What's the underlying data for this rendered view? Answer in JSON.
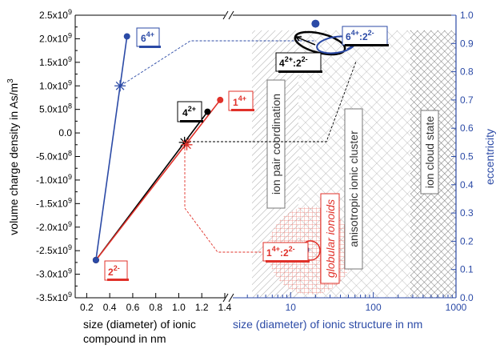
{
  "chart_data": {
    "type": "scatter",
    "left_axis": {
      "label": "volume charge density in As/m",
      "label_sup": "3",
      "ylim": [
        -3500000000.0,
        2500000000.0
      ],
      "ticks": [
        {
          "value": 2500000000.0,
          "mant": "2.5x10",
          "exp": "9"
        },
        {
          "value": 2000000000.0,
          "mant": "2.0x10",
          "exp": "9"
        },
        {
          "value": 1500000000.0,
          "mant": "1.5x10",
          "exp": "9"
        },
        {
          "value": 1000000000.0,
          "mant": "1.0x10",
          "exp": "9"
        },
        {
          "value": 500000000.0,
          "mant": "5.0x10",
          "exp": "8"
        },
        {
          "value": 0,
          "mant": "0.0",
          "exp": ""
        },
        {
          "value": -500000000.0,
          "mant": "-5.0x10",
          "exp": "8"
        },
        {
          "value": -1000000000.0,
          "mant": "-1.0x10",
          "exp": "9"
        },
        {
          "value": -1500000000.0,
          "mant": "-1.5x10",
          "exp": "9"
        },
        {
          "value": -2000000000.0,
          "mant": "-2.0x10",
          "exp": "9"
        },
        {
          "value": -2500000000.0,
          "mant": "-2.5x10",
          "exp": "9"
        },
        {
          "value": -3000000000.0,
          "mant": "-3.0x10",
          "exp": "9"
        },
        {
          "value": -3500000000.0,
          "mant": "-3.5x10",
          "exp": "9"
        }
      ]
    },
    "right_axis": {
      "label": "eccentricity",
      "ylim": [
        0,
        1.0
      ],
      "ticks": [
        "0.0",
        "0.1",
        "0.2",
        "0.3",
        "0.4",
        "0.5",
        "0.6",
        "0.7",
        "0.8",
        "0.9",
        "1.0"
      ]
    },
    "x_axis_left": {
      "label_line1": "size (diameter) of ionic",
      "label_line2": "compound in nm",
      "xlim": [
        0.1,
        1.4
      ],
      "ticks": [
        "0.2",
        "0.4",
        "0.6",
        "0.8",
        "1.0",
        "1.2",
        "1.4"
      ]
    },
    "x_axis_right": {
      "label": "size (diameter) of ionic structure in nm",
      "scale": "log",
      "xlim": [
        2,
        1000
      ],
      "ticks": [
        {
          "value": 10,
          "label": "10"
        },
        {
          "value": 100,
          "label": "100"
        },
        {
          "value": 1000,
          "label": "1000"
        }
      ]
    },
    "series": [
      {
        "color": "#2b4aa6",
        "points": [
          {
            "x": 0.28,
            "y": -2700000000.0
          },
          {
            "x": 0.55,
            "y": 2050000000.0
          }
        ]
      },
      {
        "color": "#000000",
        "points": [
          {
            "x": 0.28,
            "y": -2700000000.0
          },
          {
            "x": 1.25,
            "y": 450000000.0
          }
        ]
      },
      {
        "color": "#e0312a",
        "points": [
          {
            "x": 0.28,
            "y": -2700000000.0
          },
          {
            "x": 1.36,
            "y": 700000000.0
          }
        ]
      }
    ],
    "mean_markers": [
      {
        "color": "#2b4aa6",
        "x": 0.49,
        "y": 1000000000.0
      },
      {
        "color": "#000000",
        "x": 1.05,
        "y": -200000000.0
      },
      {
        "color": "#e0312a",
        "x": 1.07,
        "y": -250000000.0
      }
    ],
    "ellipse_points": [
      {
        "color": "#2b4aa6",
        "x": 20,
        "eccentricity": 0.97
      },
      {
        "color": "#e0312a",
        "x": 15,
        "eccentricity": 0.17
      }
    ],
    "region_labels": [
      "ion pair coordination",
      "anisotropic ionic cluster",
      "ion cloud state"
    ],
    "point_labels": {
      "six": {
        "base": "6",
        "sup": "4+"
      },
      "four": {
        "base": "4",
        "sup": "2+"
      },
      "one": {
        "base": "1",
        "sup": "4+"
      },
      "two": {
        "base": "2",
        "sup": "2-"
      },
      "six_two": {
        "b1": "6",
        "s1": "4+",
        "mid": ":2",
        "s2": "2-"
      },
      "four_two": {
        "b1": "4",
        "s1": "2+",
        "mid": ":2",
        "s2": "2-"
      },
      "one_two": {
        "b1": "1",
        "s1": "4+",
        "mid": ":2",
        "s2": "2-"
      }
    },
    "annotation": "globular ionoids",
    "colors": {
      "blue": "#2b4aa6",
      "red": "#e0312a",
      "black": "#000000"
    }
  }
}
